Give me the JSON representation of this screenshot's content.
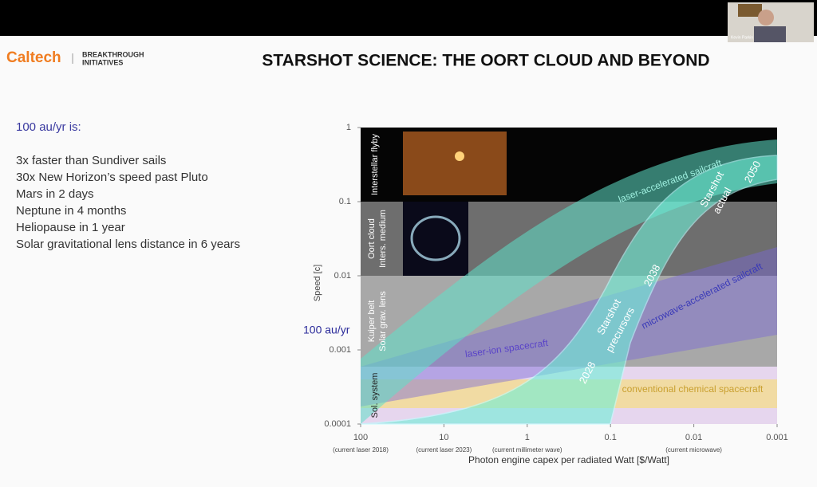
{
  "call": {
    "participant": "Kevin Parkin"
  },
  "slide": {
    "logo": "Caltech",
    "partner": [
      "BREAKTHROUGH",
      "INITIATIVES"
    ],
    "title": "STARSHOT SCIENCE: THE OORT CLOUD AND BEYOND",
    "lead": "100 au/yr is:",
    "points": [
      "3x faster than Sundiver sails",
      "30x New Horizon’s speed past Pluto",
      "Mars in 2 days",
      "Neptune in 4 months",
      "Heliopause in 1 year",
      "Solar gravitational lens distance in 6 years"
    ],
    "chart": {
      "y_label": "Speed [c]",
      "x_label": "Photon engine capex per radiated Watt [$/Watt]",
      "marker": "100 au/yr",
      "xlim": [
        100,
        0.001
      ],
      "xticks": [
        100,
        10,
        1,
        0.1,
        0.01,
        0.001
      ],
      "x_scale": "log",
      "x_notes": [
        "(current laser 2018)",
        "(current laser 2023)",
        "(current millimeter wave)",
        null,
        "(current microwave)",
        null
      ],
      "ylim": [
        0.0001,
        1
      ],
      "yticks": [
        1,
        0.1,
        0.01,
        0.001,
        0.0001
      ],
      "y_scale": "log",
      "regions": [
        [
          "Interstellar flyby"
        ],
        [
          "Oort cloud",
          "Inters. medium"
        ],
        [
          "Kuiper belt",
          "Solar grav. lens"
        ],
        [
          "Sol. system"
        ]
      ],
      "curves": [
        "laser-accelerated sailcraft",
        "microwave-accelerated sailcraft",
        "laser-ion spacecraft",
        "conventional chemical spacecraft"
      ],
      "milestones": [
        [
          "Starshot",
          "actual"
        ],
        "2050",
        [
          "Starshot",
          "precursors"
        ],
        "2038",
        "2028"
      ]
    }
  }
}
